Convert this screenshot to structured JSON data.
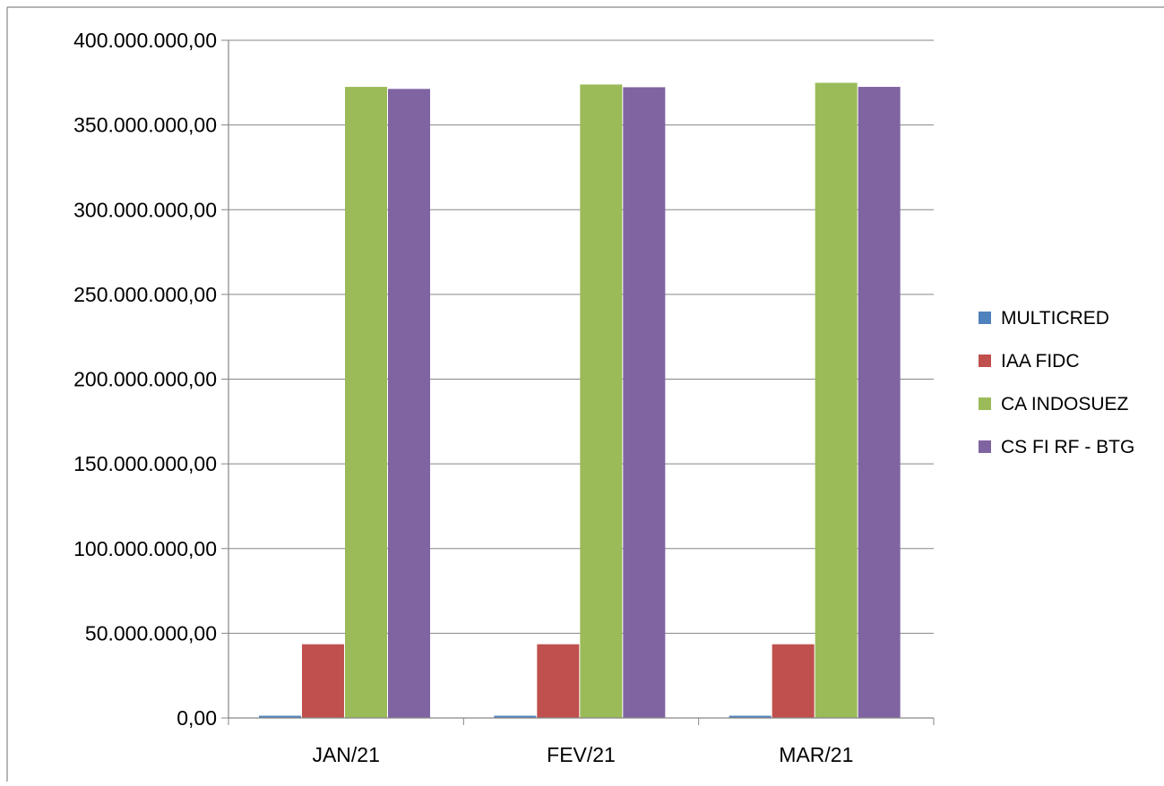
{
  "chart_data": {
    "type": "bar",
    "categories": [
      "JAN/21",
      "FEV/21",
      "MAR/21"
    ],
    "series": [
      {
        "name": "MULTICRED",
        "color": "#4F81BD",
        "values": [
          1300000,
          1300000,
          1300000
        ]
      },
      {
        "name": "IAA FIDC",
        "color": "#C0504D",
        "values": [
          43500000,
          43500000,
          43500000
        ]
      },
      {
        "name": "CA INDOSUEZ",
        "color": "#9BBB59",
        "values": [
          372500000,
          373900000,
          374900000
        ]
      },
      {
        "name": "CS FI RF - BTG",
        "color": "#8064A2",
        "values": [
          371300000,
          372300000,
          372500000
        ]
      }
    ],
    "ylim": [
      0,
      400000000
    ],
    "yticks": [
      0,
      50000000,
      100000000,
      150000000,
      200000000,
      250000000,
      300000000,
      350000000,
      400000000
    ],
    "ytick_labels": [
      "0,00",
      "50.000.000,00",
      "100.000.000,00",
      "150.000.000,00",
      "200.000.000,00",
      "250.000.000,00",
      "300.000.000,00",
      "350.000.000,00",
      "400.000.000,00"
    ],
    "grid": true,
    "legend_position": "right",
    "title": "",
    "xlabel": "",
    "ylabel": ""
  }
}
